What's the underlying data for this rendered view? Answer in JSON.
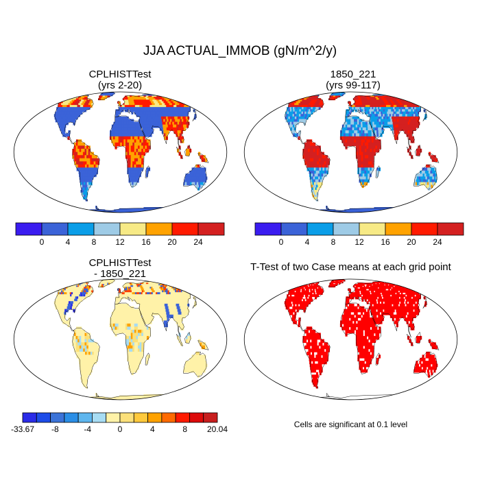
{
  "title": "JJA ACTUAL_IMMOB (gN/m^2/y)",
  "colors": {
    "ocean": "#ffffff",
    "outline": "#000000",
    "sig": "#ff0000"
  },
  "chart_data": [
    {
      "type": "heatmap",
      "name": "map-top-left",
      "title_lines": [
        "CPLHISTTest",
        "(yrs 2-20)"
      ],
      "land_palette": [
        "#3b63d8",
        "#3b63d8",
        "#3b63d8",
        "#0a9ee8",
        "#9ecbe6",
        "#f7ea86",
        "#ffa200",
        "#ff1a00",
        "#d42020"
      ],
      "colorbar": {
        "colors": [
          "#3a1cf0",
          "#3b63d8",
          "#0a9ee8",
          "#9ecbe6",
          "#f7ea86",
          "#ffa200",
          "#ff1a00",
          "#d42020"
        ],
        "tick_labels": [
          "0",
          "4",
          "8",
          "12",
          "16",
          "20",
          "24"
        ]
      }
    },
    {
      "type": "heatmap",
      "name": "map-top-right",
      "title_lines": [
        "1850_221",
        "(yrs 99-117)"
      ],
      "land_palette": [
        "#3b63d8",
        "#3b63d8",
        "#0a9ee8",
        "#9ecbe6",
        "#f7ea86",
        "#ffa200",
        "#ff1a00",
        "#d42020",
        "#d42020"
      ],
      "colorbar": {
        "colors": [
          "#3a1cf0",
          "#3b63d8",
          "#0a9ee8",
          "#9ecbe6",
          "#f7ea86",
          "#ffa200",
          "#ff1a00",
          "#d42020"
        ],
        "tick_labels": [
          "0",
          "4",
          "8",
          "12",
          "16",
          "20",
          "24"
        ]
      }
    },
    {
      "type": "heatmap",
      "name": "map-bottom-left",
      "title_lines": [
        "CPLHISTTest",
        "- 1850_221"
      ],
      "land_palette": [
        "#fff2a8",
        "#fff2a8",
        "#fff2a8",
        "#a7dcf3",
        "#fbe07a",
        "#ffa200",
        "#ff4000",
        "#3b63d8",
        "#2a2be8"
      ],
      "colorbar": {
        "colors": [
          "#2a2be8",
          "#1d4ce8",
          "#3b73d8",
          "#2a8ee6",
          "#5eb6ee",
          "#a7dcf3",
          "#fff2a8",
          "#fbe07a",
          "#ffc93c",
          "#ffa200",
          "#ff6a00",
          "#ff1a00",
          "#dd0a0a",
          "#c81e1e"
        ],
        "tick_labels": [
          "-33.67",
          "-8",
          "-4",
          "0",
          "4",
          "8",
          "20.04"
        ]
      }
    },
    {
      "type": "heatmap",
      "name": "map-bottom-right",
      "title": "T-Test of two Case means at each grid point",
      "note": "Cells are significant at 0.1 level"
    }
  ]
}
